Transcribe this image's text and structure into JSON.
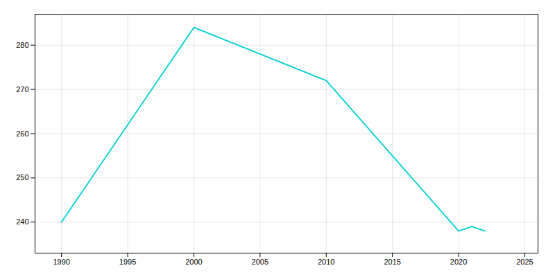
{
  "chart_data": {
    "type": "line",
    "x": [
      1990,
      2000,
      2010,
      2020,
      2021,
      2022
    ],
    "values": [
      240,
      284,
      272,
      238,
      239,
      238
    ],
    "color": "#00CED1",
    "xlim": [
      1988,
      2026
    ],
    "xticks": [
      1990,
      1995,
      2000,
      2005,
      2010,
      2015,
      2020,
      2025
    ],
    "ylim": [
      233,
      287
    ],
    "yticks": [
      240,
      250,
      260,
      270,
      280
    ],
    "grid": true
  }
}
